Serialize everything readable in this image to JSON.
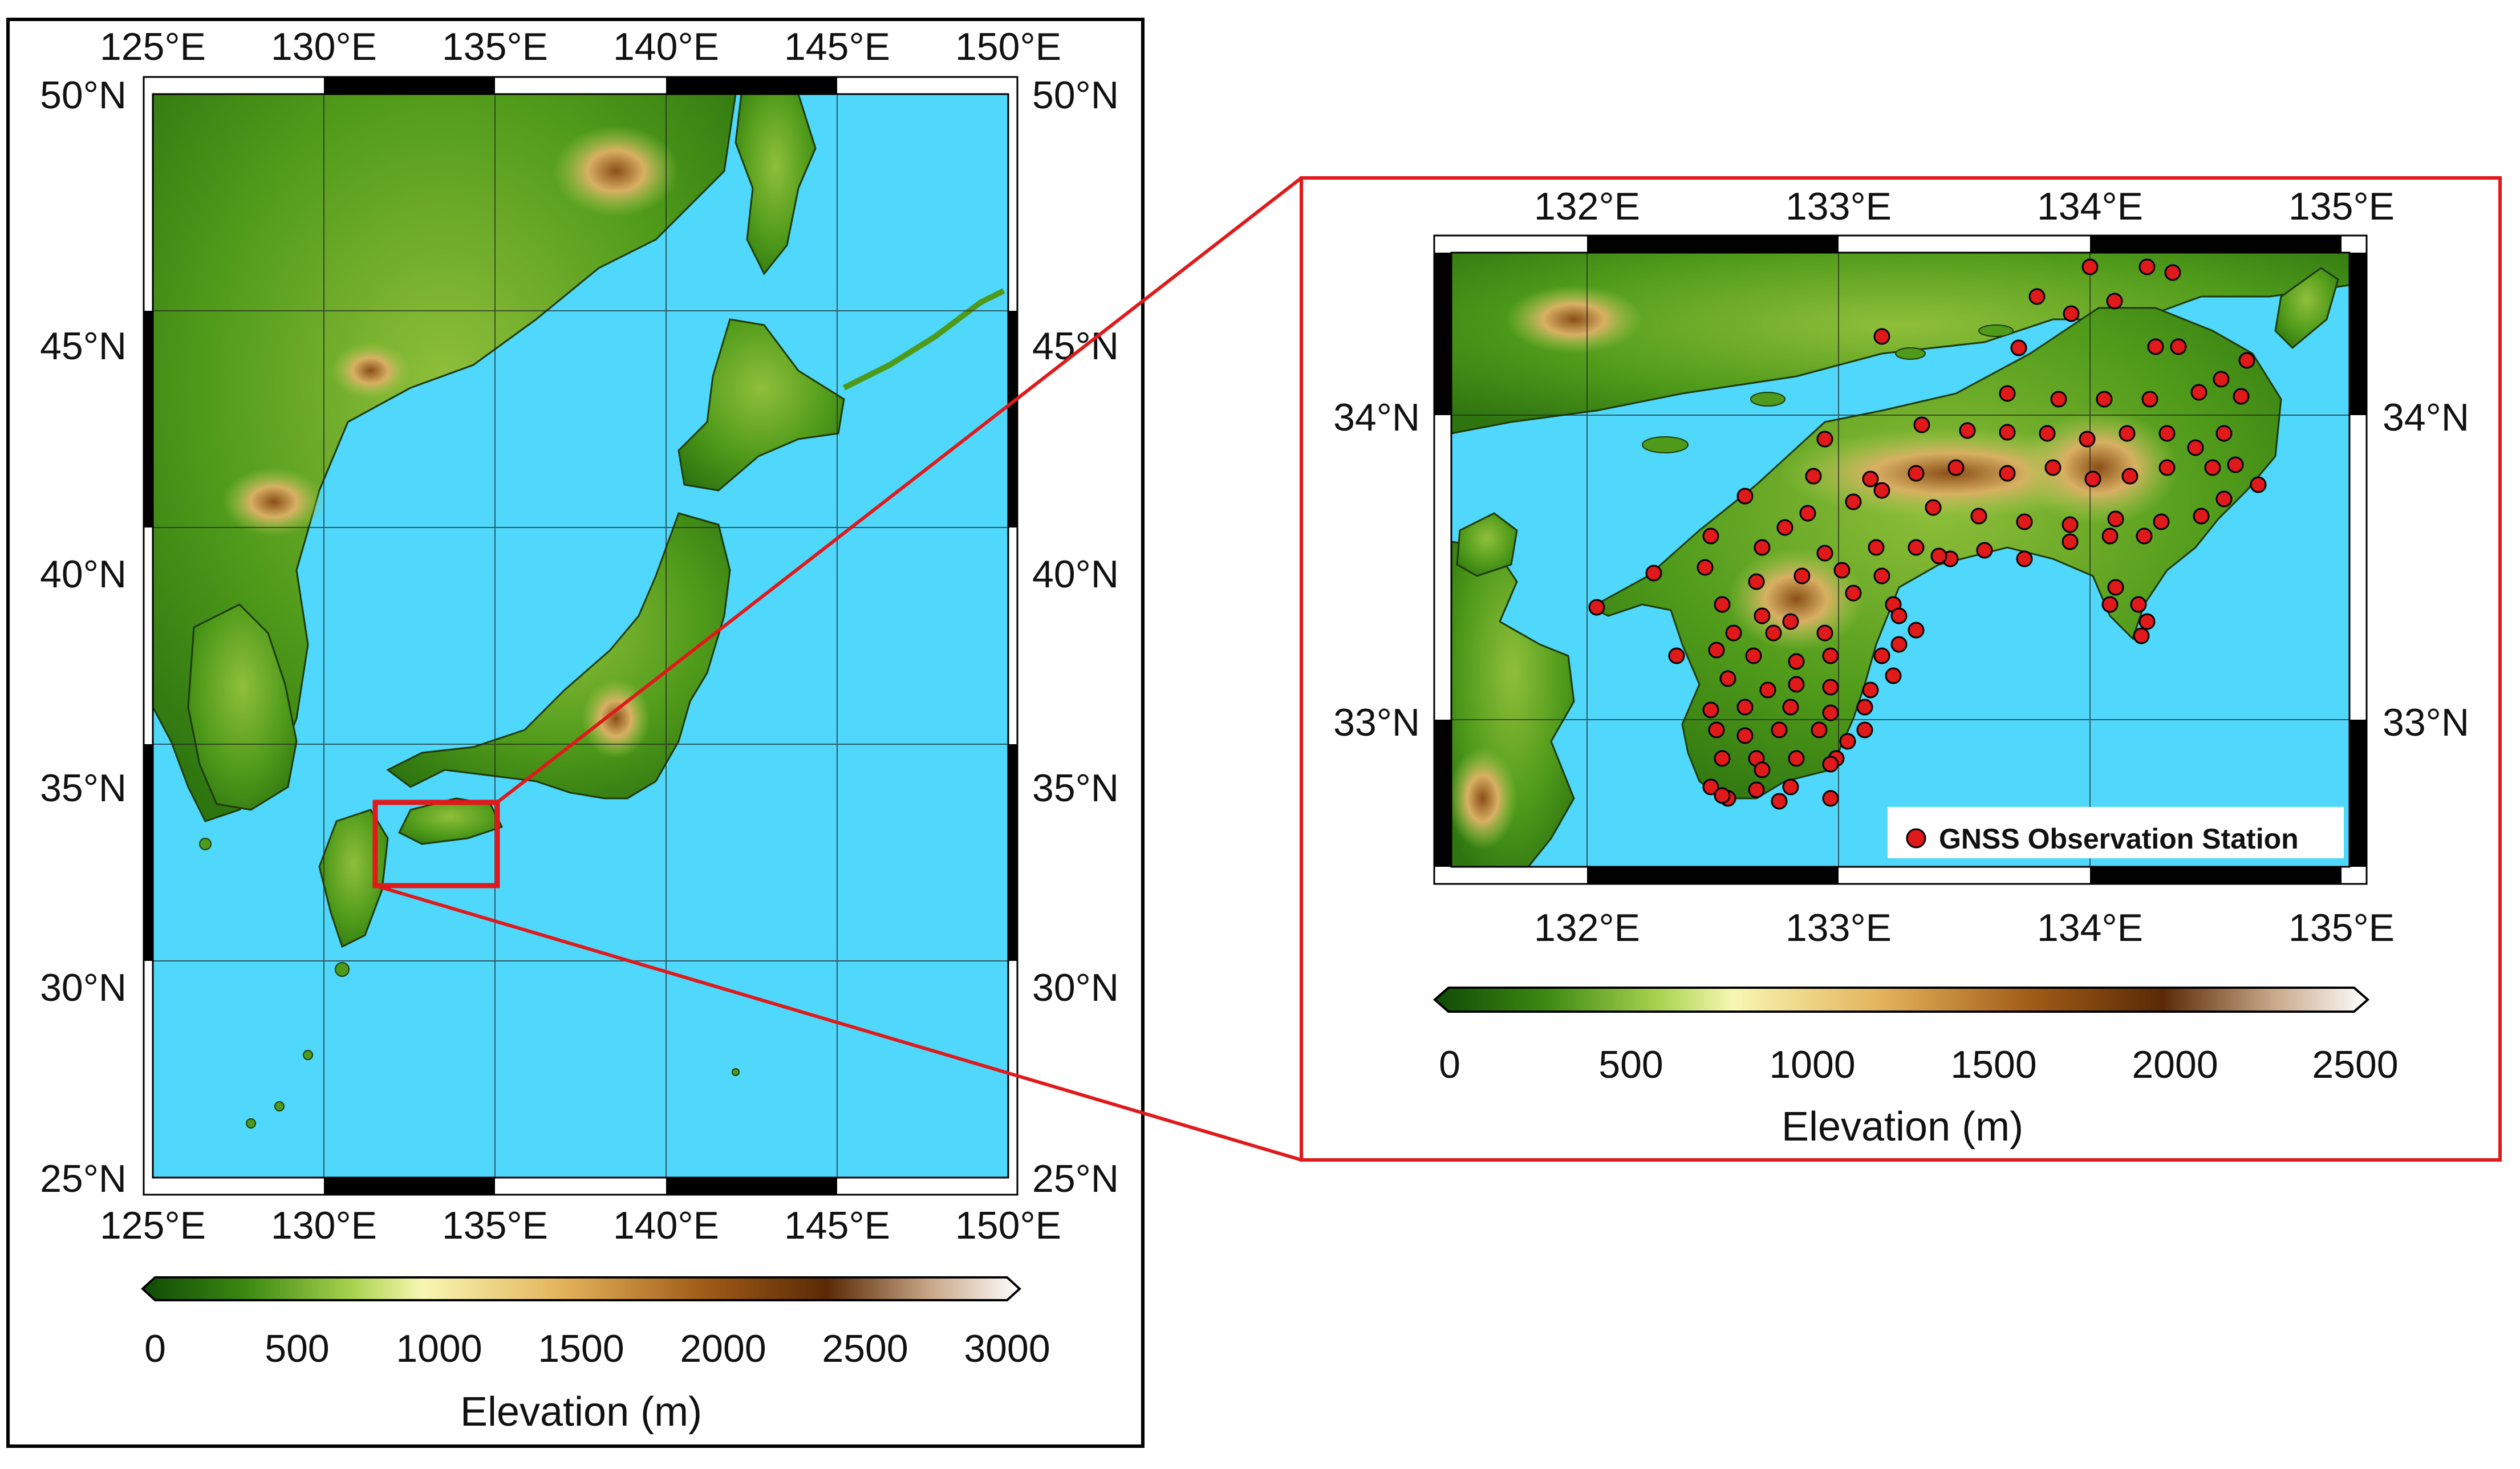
{
  "left_map": {
    "lon_labels": [
      "125°E",
      "130°E",
      "135°E",
      "140°E",
      "145°E",
      "150°E"
    ],
    "lat_labels": [
      "50°N",
      "45°N",
      "40°N",
      "35°N",
      "30°N",
      "25°N"
    ],
    "colorbar": {
      "ticks": [
        "0",
        "500",
        "1000",
        "1500",
        "2000",
        "2500",
        "3000"
      ],
      "label": "Elevation (m)"
    }
  },
  "right_map": {
    "lon_labels": [
      "132°E",
      "133°E",
      "134°E",
      "135°E"
    ],
    "lat_labels": [
      "34°N",
      "33°N"
    ],
    "colorbar": {
      "ticks": [
        "0",
        "500",
        "1000",
        "1500",
        "2000",
        "2500"
      ],
      "label": "Elevation (m)"
    },
    "legend": "GNSS Observation Station"
  },
  "colors": {
    "sea": "#4fd8fb",
    "highlight": "#e0191b",
    "station": "#e0191b"
  }
}
